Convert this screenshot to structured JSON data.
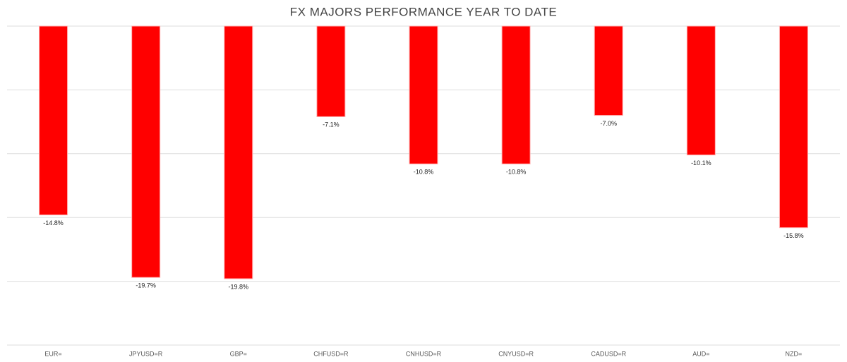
{
  "chart_data": {
    "type": "bar",
    "title": "FX MAJORS PERFORMANCE YEAR TO DATE",
    "categories": [
      "EUR=",
      "JPYUSD=R",
      "GBP=",
      "CHFUSD=R",
      "CNHUSD=R",
      "CNYUSD=R",
      "CADUSD=R",
      "AUD=",
      "NZD="
    ],
    "values": [
      -14.8,
      -19.7,
      -19.8,
      -7.1,
      -10.8,
      -10.8,
      -7.0,
      -10.1,
      -15.8
    ],
    "value_labels": [
      "-14.8%",
      "-19.7%",
      "-19.8%",
      "-7.1%",
      "-10.8%",
      "-10.8%",
      "-7.0%",
      "-10.1%",
      "-15.8%"
    ],
    "color": "#ff0000",
    "ylim": [
      -25,
      0
    ],
    "yticks": [
      0,
      -5,
      -10,
      -15,
      -20,
      -25
    ],
    "grid": true
  }
}
